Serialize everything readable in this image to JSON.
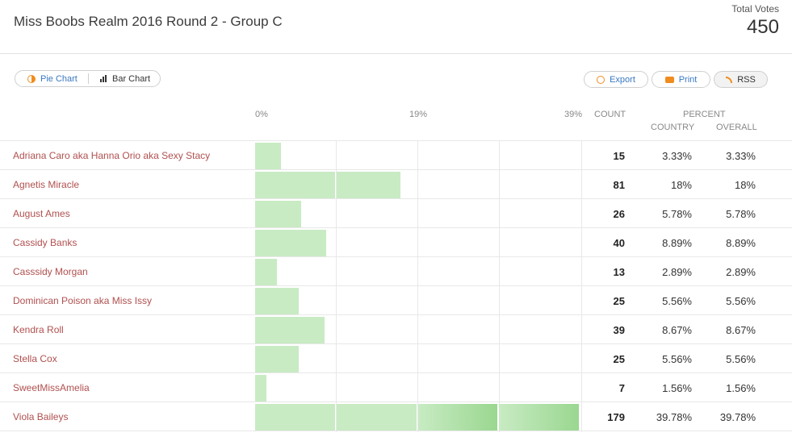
{
  "header": {
    "title": "Miss Boobs Realm 2016 Round 2 - Group C",
    "total_label": "Total Votes",
    "total_value": "450"
  },
  "toggle": {
    "pie_label": "Pie Chart",
    "bar_label": "Bar Chart",
    "active": "Pie Chart"
  },
  "actions": {
    "export_label": "Export",
    "print_label": "Print",
    "rss_label": "RSS"
  },
  "columns": {
    "axis_ticks": [
      "0%",
      "19%",
      "39%"
    ],
    "count": "COUNT",
    "percent": "PERCENT",
    "country": "COUNTRY",
    "overall": "OVERALL"
  },
  "colors": {
    "name_link": "#b0504f",
    "bar_light": "#c8ebc3",
    "bar_dark": "#9ad790",
    "accent_orange": "#f08c1e",
    "accent_blue": "#3a78c3"
  },
  "chart_data": {
    "type": "bar",
    "title": "Miss Boobs Realm 2016 Round 2 - Group C",
    "xlim": [
      0,
      39.78
    ],
    "categories": [
      "Adriana Caro aka Hanna Orio aka Sexy Stacy",
      "Agnetis Miracle",
      "August Ames",
      "Cassidy Banks",
      "Casssidy Morgan",
      "Dominican Poison aka Miss Issy",
      "Kendra Roll",
      "Stella Cox",
      "SweetMissAmelia",
      "Viola Baileys"
    ],
    "rows": [
      {
        "name": "Adriana Caro aka Hanna Orio aka Sexy Stacy",
        "count": "15",
        "country": "3.33%",
        "overall": "3.33%",
        "value": 3.33
      },
      {
        "name": "Agnetis Miracle",
        "count": "81",
        "country": "18%",
        "overall": "18%",
        "value": 18
      },
      {
        "name": "August Ames",
        "count": "26",
        "country": "5.78%",
        "overall": "5.78%",
        "value": 5.78
      },
      {
        "name": "Cassidy Banks",
        "count": "40",
        "country": "8.89%",
        "overall": "8.89%",
        "value": 8.89
      },
      {
        "name": "Casssidy Morgan",
        "count": "13",
        "country": "2.89%",
        "overall": "2.89%",
        "value": 2.89
      },
      {
        "name": "Dominican Poison aka Miss Issy",
        "count": "25",
        "country": "5.56%",
        "overall": "5.56%",
        "value": 5.56
      },
      {
        "name": "Kendra Roll",
        "count": "39",
        "country": "8.67%",
        "overall": "8.67%",
        "value": 8.67
      },
      {
        "name": "Stella Cox",
        "count": "25",
        "country": "5.56%",
        "overall": "5.56%",
        "value": 5.56
      },
      {
        "name": "SweetMissAmelia",
        "count": "7",
        "country": "1.56%",
        "overall": "1.56%",
        "value": 1.56
      },
      {
        "name": "Viola Baileys",
        "count": "179",
        "country": "39.78%",
        "overall": "39.78%",
        "value": 39.78
      }
    ]
  }
}
